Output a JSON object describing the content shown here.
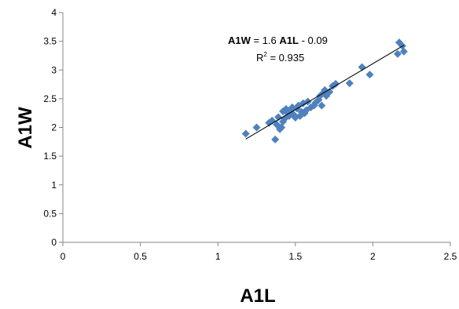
{
  "chart_data": {
    "type": "scatter",
    "xlabel": "A1L",
    "ylabel": "A1W",
    "xlim": [
      0,
      2.5
    ],
    "ylim": [
      0,
      4
    ],
    "xticks": [
      "0",
      "0.5",
      "1",
      "1.5",
      "2",
      "2.5"
    ],
    "yticks": [
      "0",
      "0.5",
      "1",
      "1.5",
      "2",
      "2.5",
      "3",
      "3.5",
      "4"
    ],
    "grid": false,
    "marker_color": "#4F81BD",
    "trendline": {
      "slope": 1.6,
      "intercept": -0.09,
      "x_range": [
        1.18,
        2.2
      ],
      "color": "#000000"
    },
    "annotation": {
      "equation_prefix": "A1W",
      "equation_mid": " = 1.6 ",
      "equation_var": "A1L",
      "equation_suffix": " - 0.09",
      "r2_prefix": "R",
      "r2_exp": "2",
      "r2_value": " = 0.935"
    },
    "points": [
      [
        1.18,
        1.89
      ],
      [
        1.25,
        2.0
      ],
      [
        1.33,
        2.08
      ],
      [
        1.35,
        2.12
      ],
      [
        1.37,
        1.79
      ],
      [
        1.38,
        2.05
      ],
      [
        1.39,
        2.18
      ],
      [
        1.4,
        1.97
      ],
      [
        1.41,
        2.0
      ],
      [
        1.42,
        2.1
      ],
      [
        1.42,
        2.28
      ],
      [
        1.43,
        2.15
      ],
      [
        1.44,
        2.32
      ],
      [
        1.45,
        2.25
      ],
      [
        1.46,
        2.2
      ],
      [
        1.47,
        2.3
      ],
      [
        1.48,
        2.35
      ],
      [
        1.49,
        2.22
      ],
      [
        1.5,
        2.17
      ],
      [
        1.51,
        2.33
      ],
      [
        1.52,
        2.38
      ],
      [
        1.53,
        2.2
      ],
      [
        1.54,
        2.27
      ],
      [
        1.55,
        2.42
      ],
      [
        1.56,
        2.25
      ],
      [
        1.57,
        2.3
      ],
      [
        1.58,
        2.45
      ],
      [
        1.6,
        2.35
      ],
      [
        1.62,
        2.38
      ],
      [
        1.63,
        2.43
      ],
      [
        1.65,
        2.48
      ],
      [
        1.66,
        2.55
      ],
      [
        1.67,
        2.38
      ],
      [
        1.68,
        2.6
      ],
      [
        1.69,
        2.65
      ],
      [
        1.7,
        2.55
      ],
      [
        1.72,
        2.62
      ],
      [
        1.74,
        2.72
      ],
      [
        1.76,
        2.76
      ],
      [
        1.85,
        2.77
      ],
      [
        1.93,
        3.05
      ],
      [
        1.98,
        2.92
      ],
      [
        2.16,
        3.28
      ],
      [
        2.17,
        3.48
      ],
      [
        2.19,
        3.42
      ],
      [
        2.2,
        3.32
      ]
    ]
  }
}
